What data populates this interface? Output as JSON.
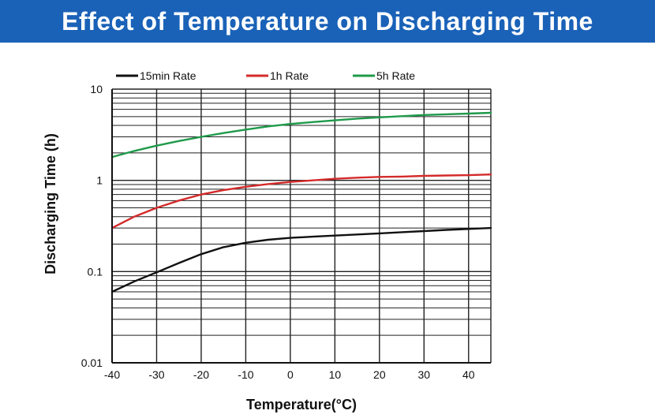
{
  "header": {
    "title": "Effect of Temperature on Discharging Time"
  },
  "chart_data": {
    "type": "line",
    "title": "Effect of Temperature on Discharging Time",
    "xlabel": "Temperature(°C)",
    "ylabel": "Discharging Time (h)",
    "xlim": [
      -40,
      45
    ],
    "ylim": [
      0.01,
      10
    ],
    "yscale": "log",
    "grid": true,
    "legend": "top",
    "x_ticks": [
      -40,
      -30,
      -20,
      -10,
      0,
      10,
      20,
      30,
      40
    ],
    "x_tick_labels": [
      "-40",
      "-30",
      "-20",
      "-10",
      "0",
      "10",
      "20",
      "30",
      "40"
    ],
    "y_ticks": [
      0.01,
      0.1,
      1,
      10
    ],
    "y_tick_labels": [
      "0.01",
      "0.1",
      "1",
      "10"
    ],
    "series": [
      {
        "name": "15min Rate",
        "color": "#111111",
        "x": [
          -40,
          -35,
          -30,
          -25,
          -20,
          -15,
          -10,
          -5,
          0,
          5,
          10,
          15,
          20,
          25,
          30,
          35,
          40,
          45
        ],
        "y": [
          0.06,
          0.078,
          0.098,
          0.124,
          0.155,
          0.185,
          0.207,
          0.223,
          0.234,
          0.241,
          0.248,
          0.255,
          0.262,
          0.27,
          0.278,
          0.286,
          0.293,
          0.3
        ]
      },
      {
        "name": "1h Rate",
        "color": "#d42a2a",
        "x": [
          -40,
          -35,
          -30,
          -25,
          -20,
          -15,
          -10,
          -5,
          0,
          5,
          10,
          15,
          20,
          25,
          30,
          35,
          40,
          45
        ],
        "y": [
          0.3,
          0.4,
          0.5,
          0.6,
          0.7,
          0.78,
          0.85,
          0.91,
          0.96,
          1.0,
          1.04,
          1.07,
          1.09,
          1.1,
          1.12,
          1.13,
          1.14,
          1.16
        ]
      },
      {
        "name": "5h Rate",
        "color": "#1f9a4a",
        "x": [
          -40,
          -35,
          -30,
          -25,
          -20,
          -15,
          -10,
          -5,
          0,
          5,
          10,
          15,
          20,
          25,
          30,
          35,
          40,
          45
        ],
        "y": [
          1.8,
          2.1,
          2.4,
          2.7,
          3.0,
          3.3,
          3.6,
          3.9,
          4.15,
          4.35,
          4.55,
          4.75,
          4.9,
          5.05,
          5.2,
          5.3,
          5.4,
          5.5
        ]
      }
    ]
  }
}
